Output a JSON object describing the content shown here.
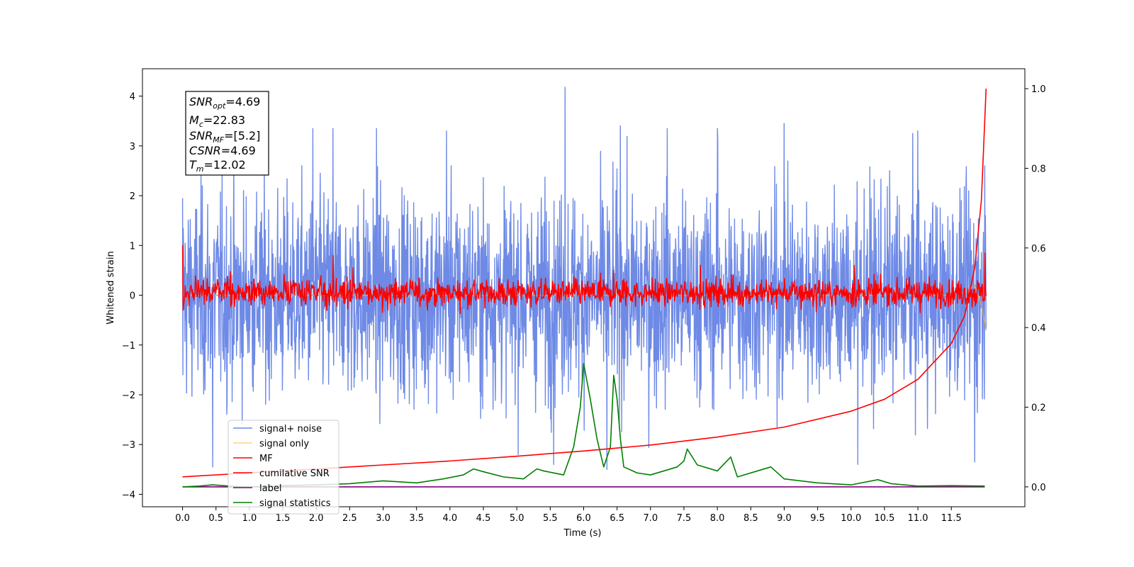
{
  "chart_data": {
    "type": "line",
    "xlabel": "Time (s)",
    "ylabel": "Whitened strain",
    "xlim": [
      -0.6,
      12.6
    ],
    "ylim_left": [
      -4.25,
      4.55
    ],
    "ylim_right": [
      -0.05,
      1.05
    ],
    "x_ticks": [
      "0.0",
      "0.5",
      "1.0",
      "1.5",
      "2.0",
      "2.5",
      "3.0",
      "3.5",
      "4.0",
      "4.5",
      "5.0",
      "5.5",
      "6.0",
      "6.5",
      "7.0",
      "7.5",
      "8.0",
      "8.5",
      "9.0",
      "9.5",
      "10.0",
      "10.5",
      "11.0",
      "11.5"
    ],
    "y_ticks_left": [
      "4",
      "3",
      "2",
      "1",
      "0",
      "−1",
      "−2",
      "−3",
      "−4"
    ],
    "y_ticks_right": [
      "1.0",
      "0.8",
      "0.6",
      "0.4",
      "0.2",
      "0.0"
    ],
    "info_box": {
      "snr_opt": {
        "base": "SNR",
        "sub": "opt",
        "value": "=4.69"
      },
      "mc": {
        "base": "M",
        "sub": "c",
        "value": "=22.83"
      },
      "snr_mf": {
        "base": "SNR",
        "sub": "MF",
        "value": "=[5.2]"
      },
      "csnr": {
        "base": "CSNR",
        "sub": "",
        "value": "=4.69"
      },
      "tm": {
        "base": "T",
        "sub": "m",
        "value": "=12.02"
      }
    },
    "legend": {
      "location": "lower-left",
      "entries": [
        "signal+ noise",
        "signal only",
        "MF",
        "cumilative SNR",
        "label",
        "signal statistics"
      ]
    },
    "series": [
      {
        "name": "signal+ noise",
        "color": "#6e8ae6",
        "axis": "left",
        "x_range": [
          0.0,
          12.02
        ],
        "y_envelope": [
          -2.6,
          2.6
        ],
        "peaks": [
          {
            "x": 0.0,
            "y": 1.95
          },
          {
            "x": 0.0,
            "y": -1.6
          },
          {
            "x": 0.45,
            "y": -3.45
          },
          {
            "x": 1.95,
            "y": 3.35
          },
          {
            "x": 2.25,
            "y": 3.35
          },
          {
            "x": 2.9,
            "y": 3.35
          },
          {
            "x": 3.95,
            "y": 3.3
          },
          {
            "x": 5.55,
            "y": -3.4
          },
          {
            "x": 5.72,
            "y": 4.18
          },
          {
            "x": 6.35,
            "y": -3.5
          },
          {
            "x": 6.55,
            "y": 3.4
          },
          {
            "x": 7.25,
            "y": 3.35
          },
          {
            "x": 8.0,
            "y": 3.35
          },
          {
            "x": 9.0,
            "y": 3.45
          },
          {
            "x": 10.1,
            "y": -3.4
          },
          {
            "x": 11.0,
            "y": 3.3
          },
          {
            "x": 11.85,
            "y": -3.35
          },
          {
            "x": 12.0,
            "y": 2.6
          }
        ]
      },
      {
        "name": "signal only",
        "color": "#c8a870",
        "axis": "left",
        "points": [
          [
            0.0,
            0.0
          ],
          [
            11.4,
            0.0
          ],
          [
            11.7,
            0.05
          ],
          [
            11.85,
            0.2
          ],
          [
            11.95,
            -0.2
          ],
          [
            12.02,
            -0.7
          ]
        ]
      },
      {
        "name": "MF",
        "color": "#ff0000",
        "axis": "left",
        "x_range": [
          0.0,
          12.02
        ],
        "y_envelope": [
          -0.3,
          0.4
        ],
        "peaks": [
          {
            "x": 0.0,
            "y": 1.0
          },
          {
            "x": 0.0,
            "y": -0.3
          },
          {
            "x": 2.25,
            "y": 0.8
          },
          {
            "x": 2.55,
            "y": 0.55
          },
          {
            "x": 6.45,
            "y": 0.5
          },
          {
            "x": 7.75,
            "y": 0.6
          },
          {
            "x": 10.05,
            "y": 0.6
          },
          {
            "x": 12.0,
            "y": 0.85
          }
        ]
      },
      {
        "name": "cumilative SNR",
        "color": "#ff0000",
        "axis": "right",
        "x": [
          0.0,
          1.0,
          2.0,
          3.0,
          4.0,
          5.0,
          6.0,
          7.0,
          8.0,
          9.0,
          10.0,
          10.5,
          11.0,
          11.5,
          11.7,
          11.85,
          11.95,
          12.02
        ],
        "y": [
          0.025,
          0.035,
          0.045,
          0.055,
          0.065,
          0.077,
          0.09,
          0.105,
          0.125,
          0.15,
          0.19,
          0.22,
          0.27,
          0.36,
          0.43,
          0.55,
          0.72,
          1.0
        ]
      },
      {
        "name": "label",
        "color": "#800080",
        "axis": "right",
        "x": [
          0.0,
          12.0
        ],
        "y": [
          0.0,
          0.0
        ]
      },
      {
        "name": "signal statistics",
        "color": "#008000",
        "axis": "right",
        "x": [
          0.0,
          0.25,
          0.45,
          0.7,
          1.0,
          1.5,
          2.0,
          2.5,
          3.0,
          3.5,
          3.9,
          4.2,
          4.35,
          4.5,
          4.8,
          5.1,
          5.3,
          5.4,
          5.7,
          5.85,
          5.95,
          6.0,
          6.1,
          6.2,
          6.3,
          6.4,
          6.45,
          6.5,
          6.55,
          6.6,
          6.8,
          7.0,
          7.2,
          7.4,
          7.5,
          7.55,
          7.7,
          8.0,
          8.2,
          8.3,
          8.6,
          8.8,
          9.0,
          9.5,
          10.0,
          10.4,
          10.6,
          11.0,
          11.5,
          12.0
        ],
        "y": [
          0.0,
          0.002,
          0.005,
          0.002,
          0.0,
          0.003,
          0.005,
          0.008,
          0.015,
          0.01,
          0.02,
          0.03,
          0.045,
          0.038,
          0.025,
          0.02,
          0.045,
          0.04,
          0.03,
          0.1,
          0.2,
          0.31,
          0.22,
          0.12,
          0.05,
          0.1,
          0.28,
          0.22,
          0.12,
          0.05,
          0.035,
          0.03,
          0.04,
          0.05,
          0.065,
          0.095,
          0.055,
          0.04,
          0.075,
          0.025,
          0.04,
          0.05,
          0.02,
          0.01,
          0.005,
          0.018,
          0.008,
          0.002,
          0.003,
          0.002
        ]
      }
    ]
  }
}
